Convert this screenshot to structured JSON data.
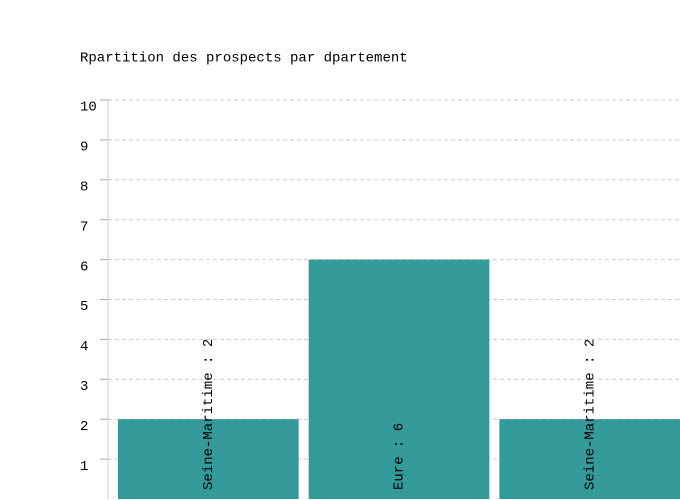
{
  "chart_data": {
    "type": "bar",
    "title": "Rpartition des prospects par dpartement",
    "values": [
      2,
      6,
      2
    ],
    "value_labels": [
      "Seine-Maritime : 2",
      "Eure : 6",
      "Seine-Maritime : 2"
    ],
    "color": "#339999",
    "ylim": [
      0,
      10
    ],
    "yticks": [
      1,
      2,
      3,
      4,
      5,
      6,
      7,
      8,
      9,
      10
    ],
    "grid": true
  }
}
